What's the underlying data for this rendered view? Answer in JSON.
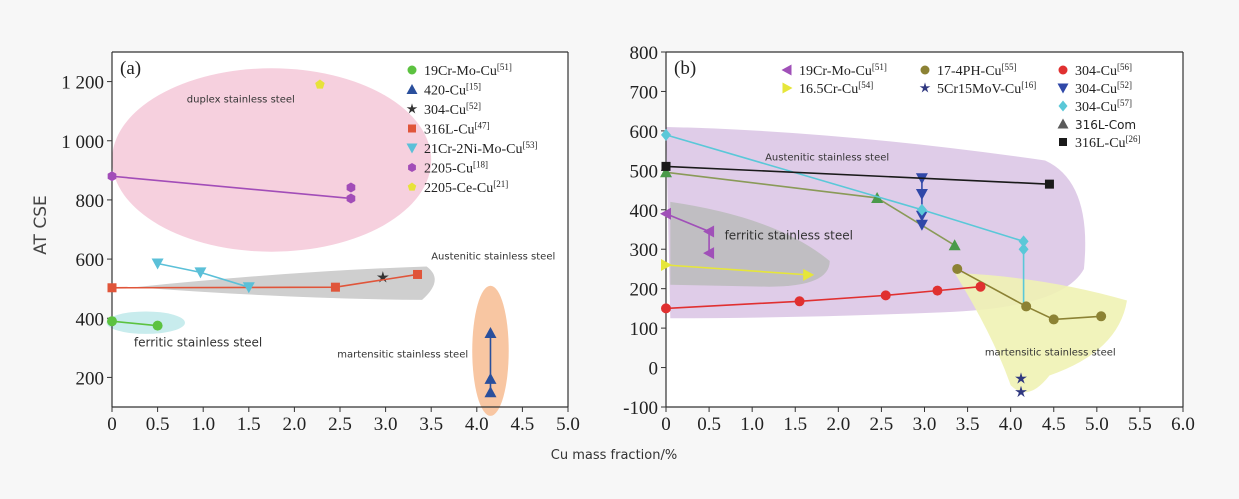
{
  "colors": {
    "19Cr-Mo-Cu": "#5cc240",
    "420-Cu": "#2a4f9c",
    "304-Cu-star": "#333333",
    "316L-Cu": "#e0553a",
    "21Cr-2Ni-Mo-Cu": "#5bc0d8",
    "2205-Cu": "#a24db8",
    "2205-Ce-Cu": "#e7e23a",
    "19Cr-Mo-Cu-b": "#a050b8",
    "16.5Cr-Cu": "#e6e63a",
    "17-4PH-Cu": "#8c8234",
    "5Cr15MoV-Cu": "#303880",
    "304-Cu-red": "#e03030",
    "304-Cu-blue": "#3048a8",
    "304-Cu-cyan": "#5ac8d8",
    "316L-Com": "#5a5a5a",
    "316L-Cu-black": "#1a1a1a"
  },
  "chart_data": [
    {
      "type": "scatter",
      "panel_label": "(a)",
      "ylabel": "AT CSE",
      "xlim": [
        0,
        5.0
      ],
      "ylim": [
        100,
        1300
      ],
      "xticks": [
        "0",
        "0.5",
        "1.0",
        "1.5",
        "2.0",
        "2.5",
        "3.0",
        "3.5",
        "4.0",
        "4.5",
        "5.0"
      ],
      "yticks": [
        "200",
        "400",
        "600",
        "800",
        "1 000",
        "1 200"
      ],
      "regions": [
        {
          "label": "duplex stainless steel",
          "color": "#f4c8d8"
        },
        {
          "label": "Austenitic stainless steel",
          "color": "#cfcfcf"
        },
        {
          "label": "ferritic stainless steel",
          "color": "#c8eced"
        },
        {
          "label": "martensitic stainless steel",
          "color": "#f8c6a2"
        }
      ],
      "series": [
        {
          "name": "19Cr-Mo-Cu",
          "ref": "[51]",
          "marker": "circle",
          "color_key": "19Cr-Mo-Cu",
          "line": true,
          "points": [
            [
              0.0,
              390
            ],
            [
              0.5,
              375
            ]
          ]
        },
        {
          "name": "420-Cu",
          "ref": "[15]",
          "marker": "triangle-up",
          "color_key": "420-Cu",
          "line": true,
          "points": [
            [
              4.15,
              350
            ],
            [
              4.15,
              195
            ],
            [
              4.15,
              150
            ]
          ]
        },
        {
          "name": "304-Cu",
          "ref": "[52]",
          "marker": "star",
          "color_key": "304-Cu-star",
          "line": false,
          "points": [
            [
              2.97,
              538
            ]
          ]
        },
        {
          "name": "316L-Cu",
          "ref": "[47]",
          "marker": "square",
          "color_key": "316L-Cu",
          "line": true,
          "points": [
            [
              0.0,
              503
            ],
            [
              2.45,
              505
            ],
            [
              3.35,
              548
            ]
          ]
        },
        {
          "name": "21Cr-2Ni-Mo-Cu",
          "ref": "[53]",
          "marker": "triangle-down",
          "color_key": "21Cr-2Ni-Mo-Cu",
          "line": true,
          "points": [
            [
              0.5,
              585
            ],
            [
              0.97,
              555
            ],
            [
              1.5,
              505
            ]
          ]
        },
        {
          "name": "2205-Cu",
          "ref": "[18]",
          "marker": "hexagon",
          "color_key": "2205-Cu",
          "line": true,
          "points": [
            [
              0.0,
              880
            ],
            [
              2.62,
              805
            ],
            [
              2.62,
              842
            ]
          ]
        },
        {
          "name": "2205-Ce-Cu",
          "ref": "[21]",
          "marker": "pentagon",
          "color_key": "2205-Ce-Cu",
          "line": false,
          "points": [
            [
              2.28,
              1190
            ]
          ]
        }
      ]
    },
    {
      "type": "scatter",
      "panel_label": "(b)",
      "xlabel": "Cu mass fraction/%",
      "xlim": [
        0,
        6.0
      ],
      "ylim": [
        -100,
        800
      ],
      "xticks": [
        "0",
        "0.5",
        "1.0",
        "1.5",
        "2.0",
        "2.5",
        "3.0",
        "3.5",
        "4.0",
        "4.5",
        "5.0",
        "5.5",
        "6.0"
      ],
      "yticks": [
        "-100",
        "0",
        "100",
        "200",
        "300",
        "400",
        "500",
        "600",
        "700",
        "800"
      ],
      "regions": [
        {
          "label": "Austenitic stainless steel",
          "color": "#dcc6e6"
        },
        {
          "label": "ferritic stainless steel",
          "color": "#bbbbbb"
        },
        {
          "label": "martensitic stainless steel",
          "color": "#f0f2b4"
        }
      ],
      "series": [
        {
          "name": "19Cr-Mo-Cu",
          "ref": "[51]",
          "marker": "triangle-left",
          "color_key": "19Cr-Mo-Cu-b",
          "line": true,
          "points": [
            [
              0.0,
              390
            ],
            [
              0.5,
              345
            ],
            [
              0.5,
              290
            ]
          ]
        },
        {
          "name": "16.5Cr-Cu",
          "ref": "[54]",
          "marker": "triangle-right",
          "color_key": "16.5Cr-Cu",
          "line": true,
          "points": [
            [
              0.0,
              260
            ],
            [
              1.65,
              235
            ]
          ]
        },
        {
          "name": "17-4PH-Cu",
          "ref": "[55]",
          "marker": "circle",
          "color_key": "17-4PH-Cu",
          "line": true,
          "points": [
            [
              3.38,
              250
            ],
            [
              4.18,
              155
            ],
            [
              4.5,
              122
            ],
            [
              5.05,
              130
            ]
          ]
        },
        {
          "name": "5Cr15MoV-Cu",
          "ref": "[16]",
          "marker": "star",
          "color_key": "5Cr15MoV-Cu",
          "line": false,
          "points": [
            [
              4.12,
              -28
            ],
            [
              4.12,
              -62
            ]
          ]
        },
        {
          "name": "304-Cu",
          "ref": "[56]",
          "marker": "circle",
          "color_key": "304-Cu-red",
          "line": true,
          "points": [
            [
              0.0,
              150
            ],
            [
              1.55,
              168
            ],
            [
              2.55,
              183
            ],
            [
              3.15,
              195
            ],
            [
              3.65,
              205
            ]
          ]
        },
        {
          "name": "304-Cu",
          "ref": "[52]",
          "marker": "triangle-down",
          "color_key": "304-Cu-blue",
          "line": true,
          "points": [
            [
              2.97,
              480
            ],
            [
              2.97,
              440
            ],
            [
              2.97,
              385
            ],
            [
              2.97,
              362
            ]
          ]
        },
        {
          "name": "304-Cu",
          "ref": "[57]",
          "marker": "diamond",
          "color_key": "304-Cu-cyan",
          "line": true,
          "points": [
            [
              0.0,
              590
            ],
            [
              2.97,
              400
            ],
            [
              4.15,
              320
            ],
            [
              4.15,
              300
            ]
          ]
        },
        {
          "name": "316L-Com",
          "ref": "",
          "marker": "triangle-up",
          "color_key": "316L-Com",
          "line": false,
          "points": []
        },
        {
          "name": "316L-Cu",
          "ref": "[26]",
          "marker": "square",
          "color_key": "316L-Cu-black",
          "line": true,
          "points": [
            [
              0.0,
              510
            ],
            [
              4.45,
              465
            ]
          ]
        }
      ],
      "extra_lines": [
        {
          "color": "#8a9a58",
          "marker": "triangle-up",
          "marker_color": "#4a9a4a",
          "points": [
            [
              0.0,
              495
            ],
            [
              2.45,
              430
            ],
            [
              3.35,
              310
            ]
          ]
        },
        {
          "color": "#5ac8d8",
          "marker": "",
          "points": [
            [
              4.15,
              300
            ],
            [
              4.15,
              155
            ]
          ]
        }
      ]
    }
  ]
}
